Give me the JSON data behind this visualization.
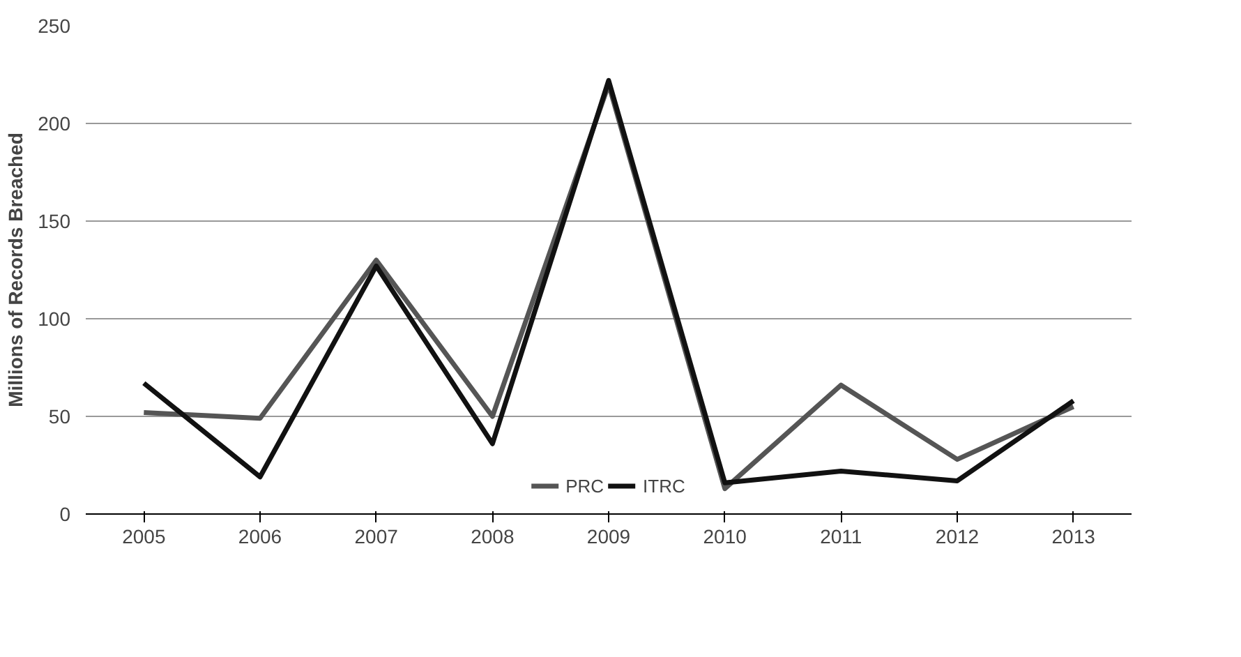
{
  "chart_data": {
    "type": "line",
    "ylabel": "Millions of Records Breached",
    "categories": [
      "2005",
      "2006",
      "2007",
      "2008",
      "2009",
      "2010",
      "2011",
      "2012",
      "2013"
    ],
    "series": [
      {
        "name": "PRC",
        "color": "#555555",
        "values": [
          52,
          49,
          130,
          50,
          220,
          13,
          66,
          28,
          55
        ]
      },
      {
        "name": "ITRC",
        "color": "#111111",
        "values": [
          67,
          19,
          127,
          36,
          222,
          16,
          22,
          17,
          58
        ]
      }
    ],
    "ylim": [
      0,
      250
    ],
    "yticks": [
      0,
      50,
      100,
      150,
      200,
      250
    ],
    "grid": "y",
    "legend": "bottom",
    "marker": "none",
    "line_style": "solid"
  }
}
